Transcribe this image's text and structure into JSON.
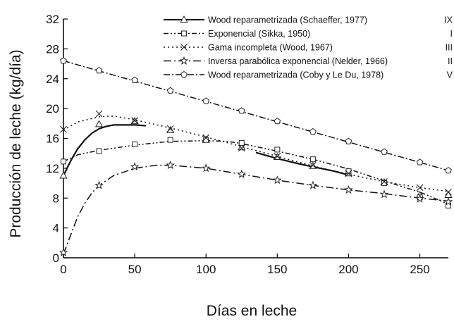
{
  "chart_data": {
    "type": "line",
    "xlabel": "Días en leche",
    "ylabel": "Producción de leche (kg/día)",
    "xlim": [
      0,
      270
    ],
    "ylim": [
      0,
      32
    ],
    "xticks": [
      0,
      50,
      100,
      150,
      200,
      250
    ],
    "yticks": [
      0,
      4,
      8,
      12,
      16,
      20,
      24,
      28,
      32
    ],
    "grid": false,
    "legend": "top-right",
    "series": [
      {
        "name": "Wood reparametrizada (Schaeffer, 1977)",
        "code": "IX",
        "marker": "triangle",
        "dash": "dash-dot",
        "curve": [
          [
            0,
            11
          ],
          [
            3,
            12.2
          ],
          [
            6,
            13.3
          ],
          [
            10,
            14.6
          ],
          [
            15,
            15.8
          ],
          [
            20,
            16.7
          ],
          [
            25,
            17.3
          ],
          [
            30,
            17.6
          ],
          [
            35,
            17.8
          ],
          [
            40,
            17.8
          ],
          [
            50,
            17.8
          ],
          [
            58,
            17.7
          ]
        ],
        "curve2": [
          [
            135,
            14.1
          ],
          [
            150,
            13.3
          ],
          [
            165,
            12.6
          ],
          [
            175,
            12.2
          ],
          [
            190,
            11.6
          ],
          [
            200,
            11.1
          ]
        ],
        "points": [
          [
            0,
            11
          ],
          [
            25,
            17.9
          ],
          [
            50,
            18.3
          ],
          [
            75,
            17.1
          ],
          [
            100,
            15.8
          ],
          [
            125,
            14.8
          ],
          [
            150,
            13.5
          ],
          [
            175,
            12.3
          ],
          [
            200,
            11.3
          ],
          [
            225,
            10.1
          ],
          [
            250,
            8.4
          ],
          [
            270,
            8.4
          ]
        ]
      },
      {
        "name": "Exponencial (Sikka, 1950)",
        "code": "I",
        "marker": "square",
        "dash": "dash-dot-dot",
        "curve": [
          [
            0,
            12.9
          ],
          [
            10,
            13.8
          ],
          [
            25,
            14.4
          ],
          [
            50,
            15.1
          ],
          [
            75,
            15.6
          ],
          [
            100,
            15.7
          ],
          [
            115,
            15.6
          ],
          [
            125,
            15.3
          ],
          [
            150,
            14.3
          ],
          [
            175,
            13.2
          ],
          [
            200,
            11.9
          ],
          [
            225,
            10.3
          ],
          [
            250,
            8.8
          ],
          [
            270,
            7.2
          ]
        ],
        "points": [
          [
            0,
            12.9
          ],
          [
            25,
            14.3
          ],
          [
            50,
            15.2
          ],
          [
            75,
            15.8
          ],
          [
            100,
            15.8
          ],
          [
            125,
            15.4
          ],
          [
            150,
            14.5
          ],
          [
            175,
            13.2
          ],
          [
            200,
            11.6
          ],
          [
            225,
            10.0
          ],
          [
            250,
            8.1
          ],
          [
            270,
            7.0
          ]
        ]
      },
      {
        "name": "Gama incompleta (Wood, 1967)",
        "code": "III",
        "marker": "x",
        "dash": "dotted",
        "curve": [
          [
            0,
            17.1
          ],
          [
            10,
            18.2
          ],
          [
            25,
            18.9
          ],
          [
            35,
            19.0
          ],
          [
            50,
            18.5
          ],
          [
            75,
            17.4
          ],
          [
            100,
            16.2
          ],
          [
            125,
            14.9
          ],
          [
            150,
            13.6
          ],
          [
            175,
            12.3
          ],
          [
            200,
            11.2
          ],
          [
            225,
            10.2
          ],
          [
            250,
            9.4
          ],
          [
            270,
            8.9
          ]
        ],
        "points": [
          [
            0,
            17.2
          ],
          [
            25,
            19.3
          ],
          [
            50,
            18.4
          ],
          [
            75,
            17.3
          ],
          [
            100,
            16.1
          ],
          [
            125,
            14.7
          ],
          [
            150,
            13.6
          ],
          [
            175,
            12.4
          ],
          [
            200,
            11.3
          ],
          [
            225,
            10.2
          ],
          [
            250,
            9.4
          ],
          [
            270,
            8.8
          ]
        ]
      },
      {
        "name": "Inversa parabólica exponencial (Nelder, 1966)",
        "code": "II",
        "marker": "star",
        "dash": "long-dash-dot",
        "curve": [
          [
            0,
            0.5
          ],
          [
            5,
            3.0
          ],
          [
            10,
            5.5
          ],
          [
            15,
            7.3
          ],
          [
            20,
            8.7
          ],
          [
            25,
            9.7
          ],
          [
            35,
            11.0
          ],
          [
            50,
            12.0
          ],
          [
            65,
            12.4
          ],
          [
            75,
            12.4
          ],
          [
            100,
            12.0
          ],
          [
            125,
            11.2
          ],
          [
            150,
            10.4
          ],
          [
            175,
            9.7
          ],
          [
            200,
            9.1
          ],
          [
            225,
            8.6
          ],
          [
            250,
            8.0
          ],
          [
            270,
            7.6
          ]
        ],
        "points": [
          [
            0,
            0.7
          ],
          [
            25,
            9.7
          ],
          [
            50,
            12.2
          ],
          [
            75,
            12.4
          ],
          [
            100,
            12.0
          ],
          [
            125,
            11.2
          ],
          [
            150,
            10.4
          ],
          [
            175,
            9.7
          ],
          [
            200,
            9.1
          ],
          [
            225,
            8.5
          ],
          [
            250,
            7.9
          ],
          [
            270,
            7.5
          ]
        ]
      },
      {
        "name": "Wood reparametrizada (Coby y Le Du, 1978)",
        "code": "V",
        "marker": "pentagon",
        "dash": "dash-dot",
        "curve": [
          [
            0,
            26.4
          ],
          [
            270,
            11.7
          ]
        ],
        "points": [
          [
            0,
            26.4
          ],
          [
            25,
            25.1
          ],
          [
            50,
            23.8
          ],
          [
            75,
            22.4
          ],
          [
            100,
            21.0
          ],
          [
            125,
            19.7
          ],
          [
            150,
            18.3
          ],
          [
            175,
            16.9
          ],
          [
            200,
            15.6
          ],
          [
            225,
            14.2
          ],
          [
            250,
            12.8
          ],
          [
            270,
            11.7
          ]
        ]
      }
    ]
  }
}
